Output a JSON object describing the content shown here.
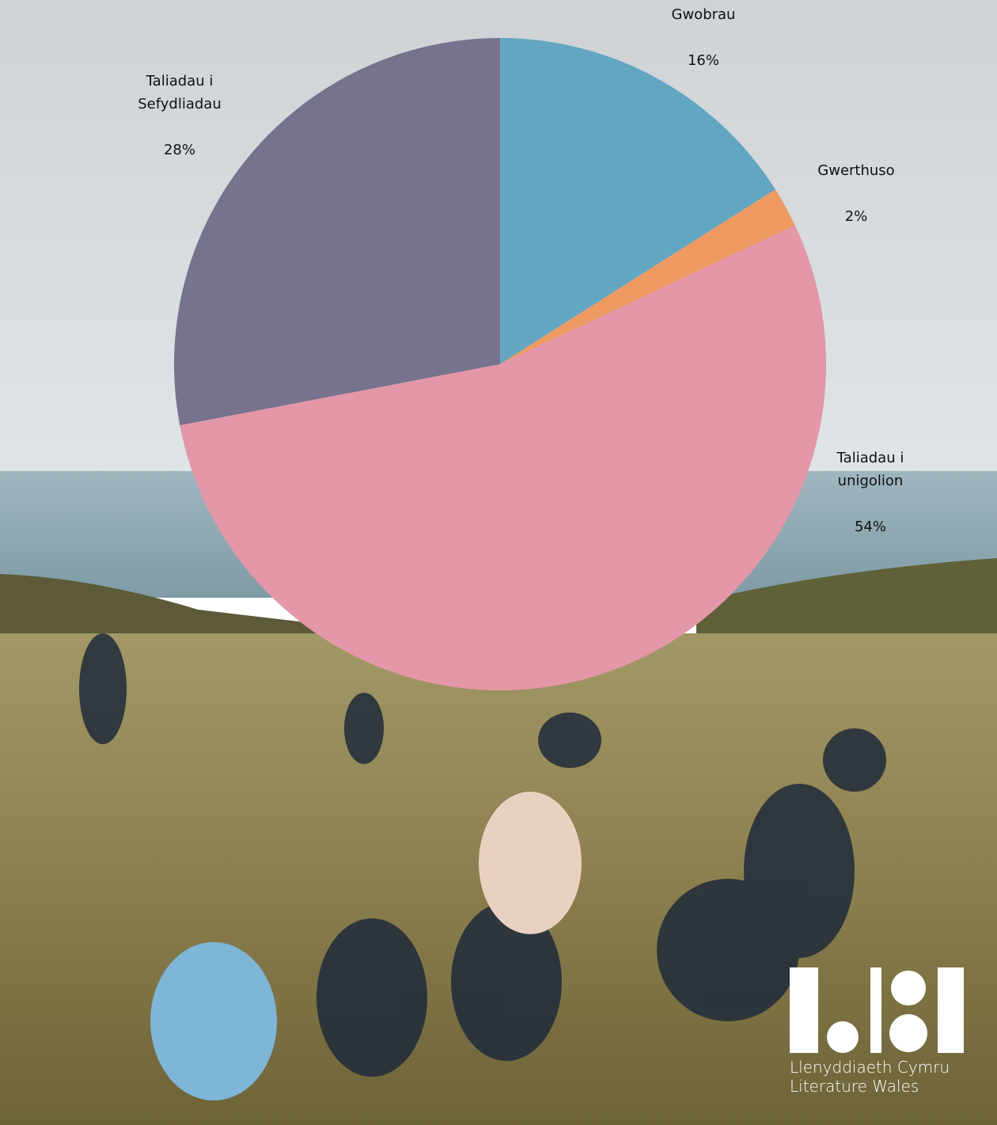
{
  "chart_data": {
    "type": "pie",
    "categories": [
      "Gwobrau",
      "Gwerthuso",
      "Taliadau i unigolion",
      "Taliadau i Sefydliadau"
    ],
    "values": [
      16,
      2,
      54,
      28
    ],
    "value_labels": [
      "16%",
      "2%",
      "54%",
      "28%"
    ],
    "colors": [
      "#63a6c2",
      "#ef9a63",
      "#e497a8",
      "#77728e"
    ]
  },
  "logo": {
    "lines": [
      "Llenyddiaeth Cymru",
      "Literature Wales"
    ]
  }
}
